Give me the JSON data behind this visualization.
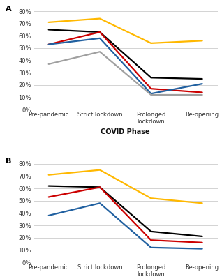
{
  "x_labels": [
    "Pre-pandemic",
    "Strict lockdown",
    "Prolonged\nlockdown",
    "Re-opening"
  ],
  "panel_A": {
    "label": "A",
    "series": {
      "yellow": [
        71,
        74,
        54,
        56
      ],
      "black": [
        65,
        63,
        26,
        25
      ],
      "red": [
        53,
        63,
        17,
        14
      ],
      "blue": [
        53,
        58,
        13,
        21
      ],
      "gray": [
        37,
        47,
        12,
        12
      ]
    }
  },
  "panel_B": {
    "label": "B",
    "series": {
      "yellow": [
        71,
        75,
        52,
        48
      ],
      "black": [
        62,
        61,
        25,
        21
      ],
      "red": [
        53,
        61,
        18,
        16
      ],
      "blue": [
        38,
        48,
        12,
        11
      ]
    }
  },
  "colors": {
    "yellow": "#FFB800",
    "black": "#000000",
    "red": "#CC0000",
    "blue": "#2060A0",
    "gray": "#A0A0A0"
  },
  "ylim": [
    0,
    80
  ],
  "yticks": [
    0,
    10,
    20,
    30,
    40,
    50,
    60,
    70,
    80
  ],
  "xlabel": "COVID Phase",
  "linewidth": 1.6,
  "background_color": "#FFFFFF",
  "grid_color": "#CCCCCC"
}
